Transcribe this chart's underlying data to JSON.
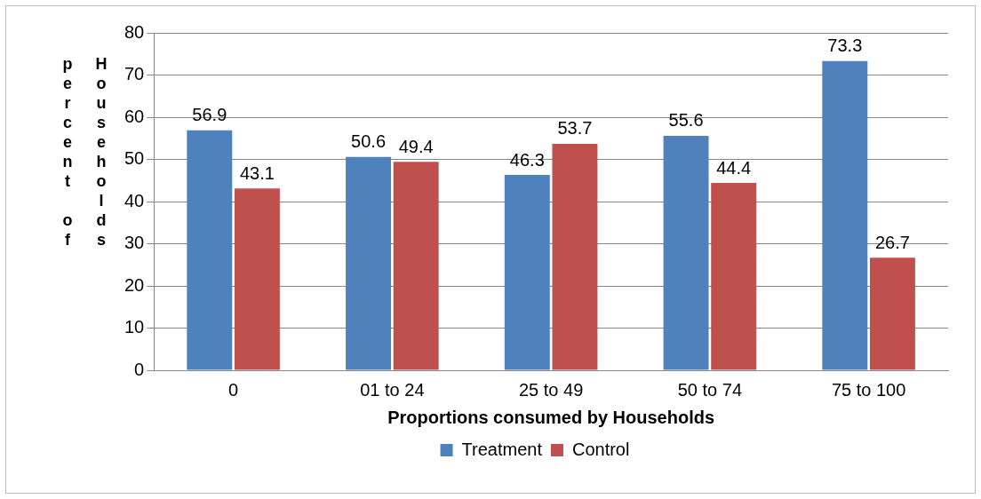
{
  "chart_data": {
    "type": "bar",
    "xlabel": "Proportions consumed by Households",
    "ylabel": "percent of Households",
    "categories": [
      "0",
      "01 to 24",
      "25 to 49",
      "50 to 74",
      "75 to 100"
    ],
    "series": [
      {
        "name": "Treatment",
        "color": "#4f81bd",
        "values": [
          56.9,
          50.6,
          46.3,
          55.6,
          73.3
        ]
      },
      {
        "name": "Control",
        "color": "#c0504d",
        "values": [
          43.1,
          49.4,
          53.7,
          44.4,
          26.7
        ]
      }
    ],
    "ylim": [
      0,
      80
    ],
    "yticks": [
      0,
      10,
      20,
      30,
      40,
      50,
      60,
      70,
      80
    ],
    "grid": "y",
    "legend": "bottom",
    "data_labels": true
  }
}
